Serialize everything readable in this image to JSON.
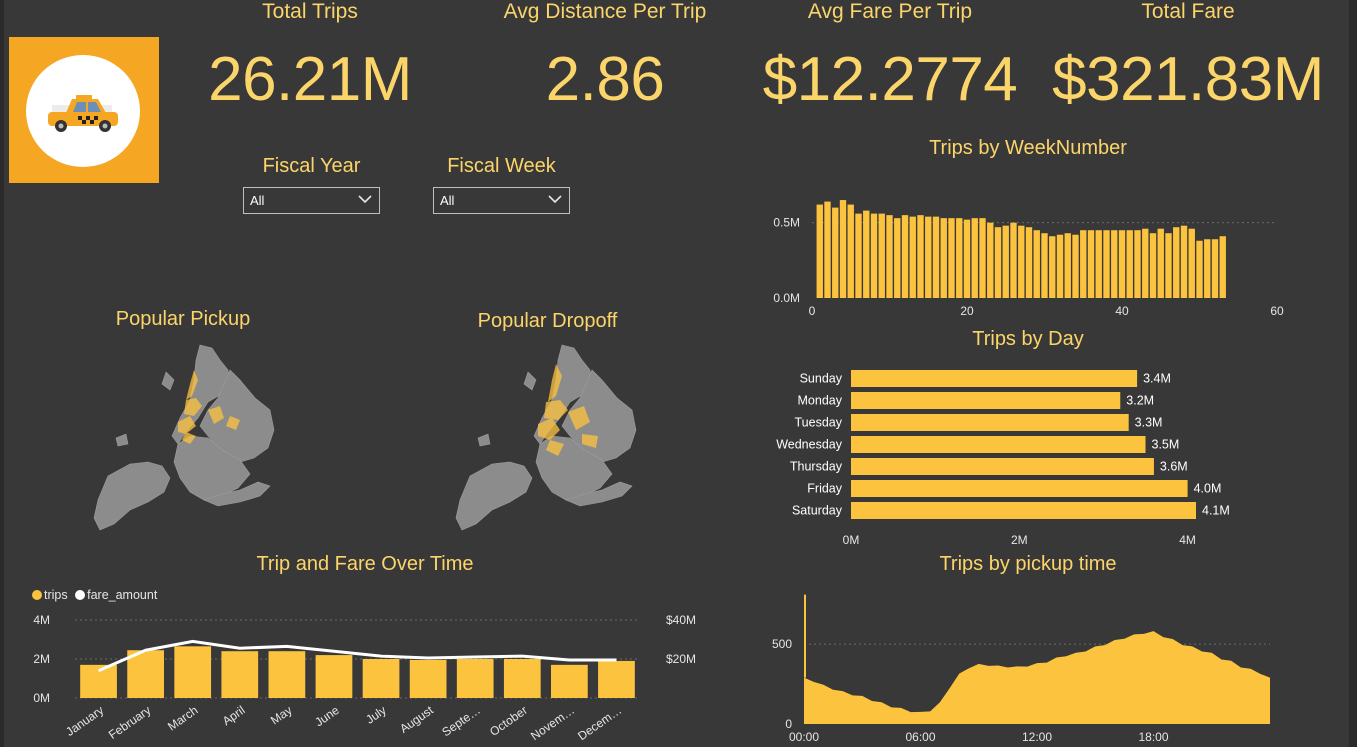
{
  "kpis": [
    {
      "label": "Total Trips",
      "value": "26.21M"
    },
    {
      "label": "Avg Distance Per Trip",
      "value": "2.86"
    },
    {
      "label": "Avg Fare Per Trip",
      "value": "$12.2774"
    },
    {
      "label": "Total Fare",
      "value": "$321.83M"
    }
  ],
  "filters": {
    "fiscal_year": {
      "label": "Fiscal Year",
      "value": "All"
    },
    "fiscal_week": {
      "label": "Fiscal Week",
      "value": "All"
    }
  },
  "logo": {
    "icon": "taxi-icon",
    "background": "#F5A623"
  },
  "maps": {
    "pickup_title": "Popular Pickup",
    "dropoff_title": "Popular Dropoff"
  },
  "colors": {
    "accent": "#FCD56A",
    "bar": "#FCC33F",
    "line": "#ffffff",
    "background": "#383838",
    "map": "#8c8c8c"
  },
  "chart_data": [
    {
      "type": "bar",
      "title": "Trips by WeekNumber",
      "x": [
        1,
        2,
        3,
        4,
        5,
        6,
        7,
        8,
        9,
        10,
        11,
        12,
        13,
        14,
        15,
        16,
        17,
        18,
        19,
        20,
        21,
        22,
        23,
        24,
        25,
        26,
        27,
        28,
        29,
        30,
        31,
        32,
        33,
        34,
        35,
        36,
        37,
        38,
        39,
        40,
        41,
        42,
        43,
        44,
        45,
        46,
        47,
        48,
        49,
        50,
        51,
        52,
        53
      ],
      "values": [
        0.62,
        0.64,
        0.6,
        0.65,
        0.62,
        0.56,
        0.58,
        0.56,
        0.56,
        0.55,
        0.53,
        0.55,
        0.54,
        0.55,
        0.54,
        0.54,
        0.53,
        0.53,
        0.53,
        0.52,
        0.53,
        0.53,
        0.5,
        0.47,
        0.48,
        0.5,
        0.48,
        0.47,
        0.45,
        0.43,
        0.41,
        0.42,
        0.43,
        0.42,
        0.45,
        0.45,
        0.45,
        0.45,
        0.45,
        0.45,
        0.45,
        0.45,
        0.46,
        0.43,
        0.46,
        0.43,
        0.47,
        0.48,
        0.46,
        0.38,
        0.39,
        0.39,
        0.41
      ],
      "xlim": [
        0,
        60
      ],
      "xticks": [
        "0",
        "20",
        "40",
        "60"
      ],
      "ylim": [
        0,
        0.75
      ],
      "yticks": [
        {
          "v": 0,
          "label": "0.0M"
        },
        {
          "v": 0.5,
          "label": "0.5M"
        }
      ]
    },
    {
      "type": "bar",
      "title": "Trips by Day",
      "categories": [
        "Sunday",
        "Monday",
        "Tuesday",
        "Wednesday",
        "Thursday",
        "Friday",
        "Saturday"
      ],
      "values": [
        3.4,
        3.2,
        3.3,
        3.5,
        3.6,
        4.0,
        4.1
      ],
      "labels": [
        "3.4M",
        "3.2M",
        "3.3M",
        "3.5M",
        "3.6M",
        "4.0M",
        "4.1M"
      ],
      "xlim": [
        0,
        4.1
      ],
      "xticks": [
        {
          "v": 0,
          "label": "0M"
        },
        {
          "v": 2,
          "label": "2M"
        },
        {
          "v": 4,
          "label": "4M"
        }
      ]
    },
    {
      "type": "bar",
      "title": "Trip and Fare Over Time",
      "categories": [
        "January",
        "February",
        "March",
        "April",
        "May",
        "June",
        "July",
        "August",
        "Septe…",
        "October",
        "Novem…",
        "Decem…"
      ],
      "series": [
        {
          "name": "trips",
          "values": [
            1.7,
            2.45,
            2.65,
            2.4,
            2.4,
            2.2,
            2.0,
            1.95,
            2.0,
            2.0,
            1.7,
            1.9
          ]
        },
        {
          "name": "fare_amount",
          "values": [
            14.0,
            24.5,
            29.0,
            25.5,
            26.5,
            24.0,
            21.5,
            20.5,
            21.0,
            21.5,
            19.5,
            19.5
          ]
        }
      ],
      "ylim_left": [
        0,
        4
      ],
      "yticks_left": [
        {
          "v": 0,
          "label": "0M"
        },
        {
          "v": 2,
          "label": "2M"
        },
        {
          "v": 4,
          "label": "4M"
        }
      ],
      "ylim_right": [
        0,
        40
      ],
      "yticks_right": [
        {
          "v": 20,
          "label": "$20M"
        },
        {
          "v": 40,
          "label": "$40M"
        }
      ]
    },
    {
      "type": "area",
      "title": "Trips by pickup time",
      "x": [
        "00:00",
        "00:30",
        "01:00",
        "01:30",
        "02:00",
        "02:30",
        "03:00",
        "03:30",
        "04:00",
        "04:30",
        "05:00",
        "05:30",
        "06:00",
        "06:30",
        "07:00",
        "07:30",
        "08:00",
        "08:30",
        "09:00",
        "09:30",
        "10:00",
        "10:30",
        "11:00",
        "11:30",
        "12:00",
        "12:30",
        "13:00",
        "13:30",
        "14:00",
        "14:30",
        "15:00",
        "15:30",
        "16:00",
        "16:30",
        "17:00",
        "17:30",
        "18:00",
        "18:30",
        "19:00",
        "19:30",
        "20:00",
        "20:30",
        "21:00",
        "21:30",
        "22:00",
        "22:30",
        "23:00",
        "23:30",
        "24:00"
      ],
      "values": [
        290,
        270,
        240,
        220,
        200,
        185,
        170,
        150,
        130,
        110,
        95,
        80,
        70,
        85,
        130,
        230,
        310,
        355,
        370,
        370,
        360,
        360,
        355,
        365,
        375,
        390,
        410,
        430,
        440,
        460,
        480,
        500,
        520,
        540,
        555,
        570,
        575,
        550,
        525,
        500,
        480,
        460,
        440,
        410,
        390,
        360,
        340,
        320,
        290
      ],
      "peak_spike": 810,
      "ylim": [
        0,
        820
      ],
      "yticks": [
        {
          "v": 0,
          "label": "0"
        },
        {
          "v": 500,
          "label": "500"
        }
      ],
      "xticks": [
        "00:00",
        "06:00",
        "12:00",
        "18:00"
      ]
    }
  ]
}
